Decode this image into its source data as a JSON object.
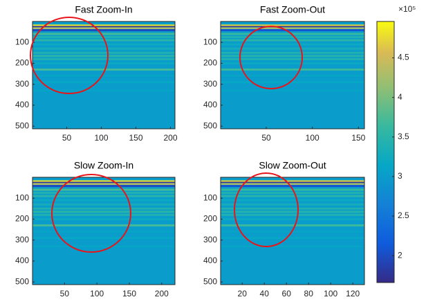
{
  "chart_data": [
    {
      "type": "heatmap",
      "title": "Fast Zoom-In",
      "xlim": [
        0.5,
        206.5
      ],
      "ylim": [
        0.5,
        512.5
      ],
      "xticks": [
        50,
        100,
        150,
        200
      ],
      "yticks": [
        100,
        200,
        300,
        400,
        500
      ],
      "background": 300000,
      "stripes": {
        "y": [
          20,
          27,
          33,
          42,
          60,
          75,
          90,
          110,
          130,
          150,
          165,
          180,
          200,
          230,
          260,
          290,
          330
        ],
        "values": [
          480000,
          180000,
          430000,
          200000,
          370000,
          340000,
          350000,
          320000,
          330000,
          340000,
          350000,
          340000,
          320000,
          370000,
          310000,
          315000,
          310000
        ]
      }
    },
    {
      "type": "heatmap",
      "title": "Fast Zoom-Out",
      "xlim": [
        0.5,
        156.5
      ],
      "ylim": [
        0.5,
        512.5
      ],
      "xticks": [
        50,
        100,
        150
      ],
      "yticks": [
        100,
        200,
        300,
        400,
        500
      ],
      "background": 300000,
      "stripes": {
        "y": [
          20,
          27,
          33,
          42,
          60,
          75,
          90,
          110,
          130,
          150,
          165,
          180,
          200,
          230,
          260,
          290,
          330
        ],
        "values": [
          470000,
          180000,
          420000,
          210000,
          360000,
          340000,
          350000,
          320000,
          330000,
          340000,
          345000,
          340000,
          320000,
          365000,
          310000,
          315000,
          310000
        ]
      }
    },
    {
      "type": "heatmap",
      "title": "Slow Zoom-In",
      "xlim": [
        0.5,
        220.5
      ],
      "ylim": [
        0.5,
        512.5
      ],
      "xticks": [
        50,
        100,
        150,
        200
      ],
      "yticks": [
        100,
        200,
        300,
        400,
        500
      ],
      "background": 300000,
      "stripes": {
        "y": [
          20,
          27,
          33,
          42,
          60,
          75,
          90,
          110,
          130,
          150,
          165,
          180,
          200,
          230,
          260,
          290,
          330
        ],
        "values": [
          480000,
          180000,
          430000,
          200000,
          370000,
          340000,
          350000,
          320000,
          330000,
          340000,
          350000,
          340000,
          320000,
          370000,
          310000,
          315000,
          310000
        ]
      }
    },
    {
      "type": "heatmap",
      "title": "Slow Zoom-Out",
      "xlim": [
        0.5,
        130.5
      ],
      "ylim": [
        0.5,
        512.5
      ],
      "xticks": [
        20,
        40,
        60,
        80,
        100,
        120
      ],
      "yticks": [
        100,
        200,
        300,
        400,
        500
      ],
      "background": 300000,
      "stripes": {
        "y": [
          20,
          27,
          33,
          42,
          60,
          75,
          90,
          110,
          130,
          150,
          165,
          180,
          200,
          230,
          260,
          290,
          330
        ],
        "values": [
          470000,
          180000,
          420000,
          210000,
          360000,
          340000,
          350000,
          320000,
          330000,
          340000,
          345000,
          340000,
          320000,
          365000,
          310000,
          315000,
          310000
        ]
      }
    }
  ],
  "colorbar": {
    "clim": [
      166000,
      496000
    ],
    "exponent": "×10⁵",
    "ticks": [
      {
        "value": 200000,
        "label": "2"
      },
      {
        "value": 250000,
        "label": "2.5"
      },
      {
        "value": 300000,
        "label": "3"
      },
      {
        "value": 350000,
        "label": "3.5"
      },
      {
        "value": 400000,
        "label": "4"
      },
      {
        "value": 450000,
        "label": "4.5"
      }
    ]
  }
}
